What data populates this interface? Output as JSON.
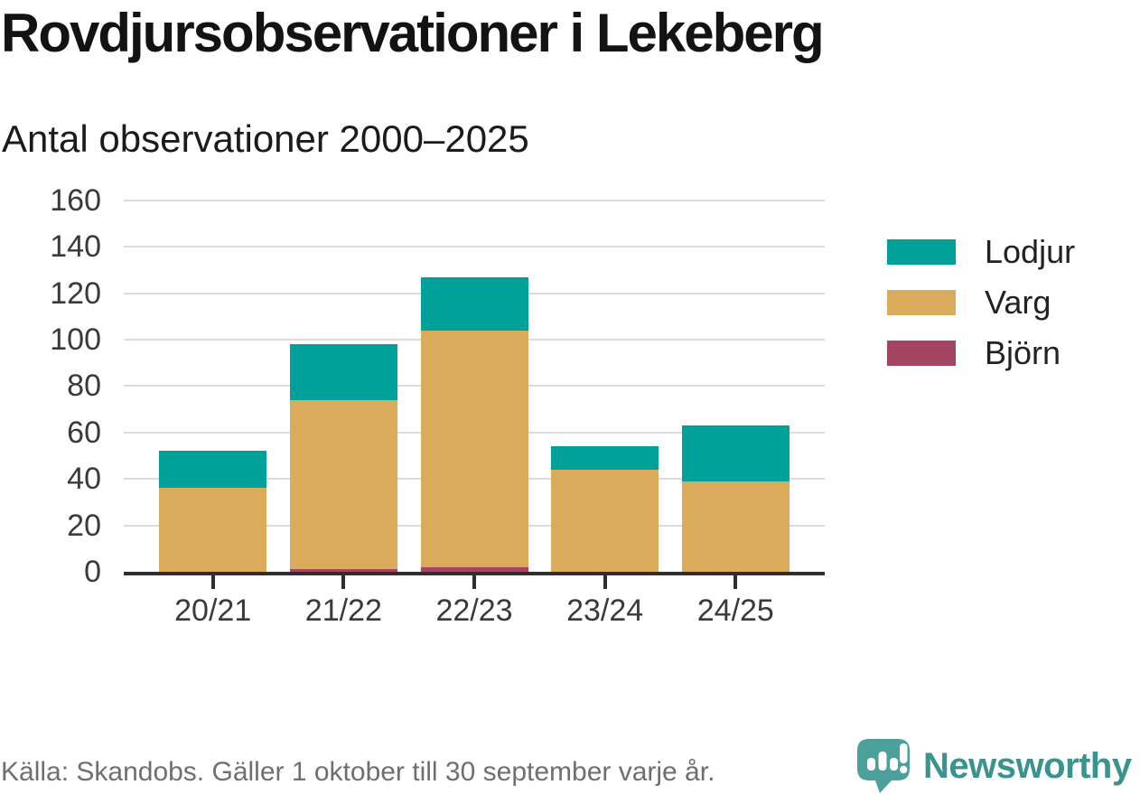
{
  "header": {
    "title": "Rovdjursobservationer i Lekeberg",
    "subtitle": "Antal observationer 2000–2025"
  },
  "chart_data": {
    "type": "bar",
    "stacked": true,
    "title": "Rovdjursobservationer i Lekeberg",
    "subtitle": "Antal observationer 2000–2025",
    "categories": [
      "20/21",
      "21/22",
      "22/23",
      "23/24",
      "24/25"
    ],
    "series": [
      {
        "name": "Björn",
        "color": "#a54562",
        "values": [
          0,
          1,
          2,
          0,
          0
        ]
      },
      {
        "name": "Varg",
        "color": "#daab5b",
        "values": [
          36,
          73,
          102,
          44,
          39
        ]
      },
      {
        "name": "Lodjur",
        "color": "#00a199",
        "values": [
          16,
          24,
          23,
          10,
          24
        ]
      }
    ],
    "totals": [
      52,
      98,
      127,
      54,
      63
    ],
    "ylim": [
      0,
      160
    ],
    "yticks": [
      0,
      20,
      40,
      60,
      80,
      100,
      120,
      140,
      160
    ],
    "grid": "horizontal",
    "legend_position": "right",
    "legend": [
      {
        "label": "Lodjur",
        "color": "#00a199"
      },
      {
        "label": "Varg",
        "color": "#daab5b"
      },
      {
        "label": "Björn",
        "color": "#a54562"
      }
    ]
  },
  "footer": {
    "source": "Källa: Skandobs. Gäller 1 oktober till 30 september varje år.",
    "brand": "Newsworthy",
    "brand_color": "#3a938d",
    "logo_color": "#4ba09a"
  }
}
